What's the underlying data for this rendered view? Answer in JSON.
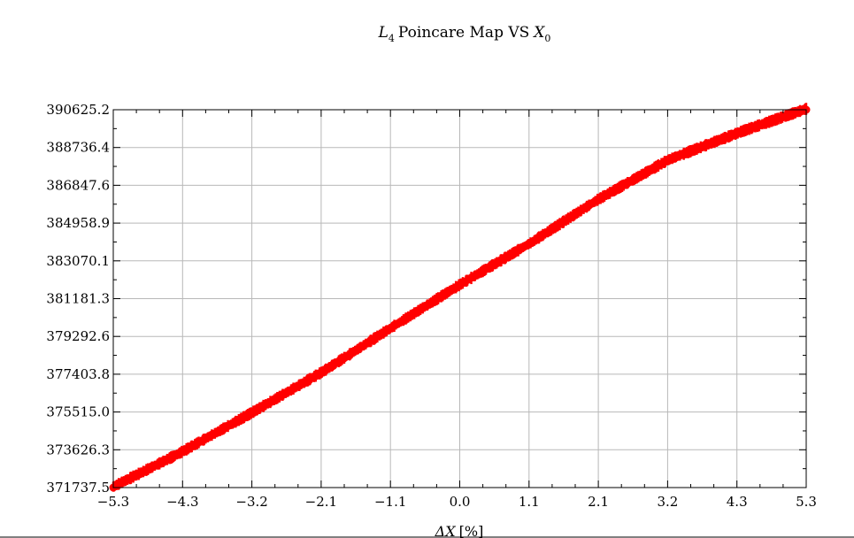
{
  "chart_data": {
    "type": "scatter",
    "title": {
      "symbol": "L",
      "symbol_sub": "4",
      "text": "Poincare Map VS",
      "var": "X",
      "var_sub": "0"
    },
    "xlabel": {
      "symbol": "ΔX",
      "unit": "[%]"
    },
    "ylabel": "",
    "xlim": [
      -5.3,
      5.3
    ],
    "ylim": [
      371737.5,
      390625.2
    ],
    "x_ticks": [
      "−5.3",
      "−4.3",
      "−3.2",
      "−2.1",
      "−1.1",
      "0.0",
      "1.1",
      "2.1",
      "3.2",
      "4.3",
      "5.3"
    ],
    "y_ticks": [
      "371737.5",
      "373626.3",
      "375515.0",
      "377403.8",
      "379292.6",
      "381181.3",
      "383070.1",
      "384958.9",
      "386847.6",
      "388736.4",
      "390625.2"
    ],
    "grid": true,
    "marker_color": "#ff0000",
    "series": [
      {
        "x": [
          -5.3,
          -4.3,
          -3.2,
          -2.1,
          -1.1,
          0.0,
          1.1,
          2.1,
          3.2,
          4.3,
          5.3
        ],
        "y": [
          371737.5,
          373386.0,
          375400.0,
          377481.0,
          379577.0,
          381832.0,
          383958.0,
          386062.0,
          388090.0,
          389480.0,
          390625.2
        ]
      }
    ]
  }
}
